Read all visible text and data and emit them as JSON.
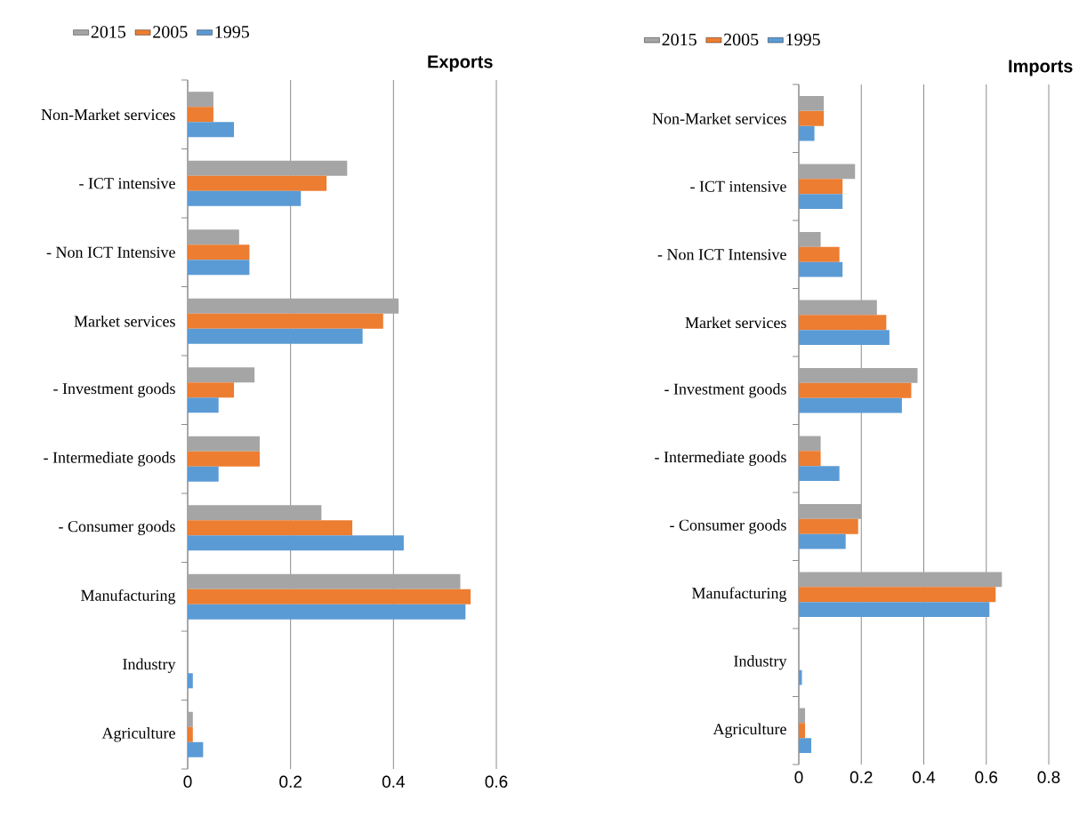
{
  "chart_data": [
    {
      "type": "bar",
      "orientation": "horizontal",
      "title": "Exports",
      "categories": [
        "Non-Market services",
        "- ICT intensive",
        "- Non ICT Intensive",
        "Market services",
        "- Investment goods",
        "- Intermediate goods",
        "- Consumer goods",
        "Manufacturing",
        "Industry",
        "Agriculture"
      ],
      "series": [
        {
          "name": "2015",
          "color": "#a5a5a5",
          "values": [
            0.05,
            0.31,
            0.1,
            0.41,
            0.13,
            0.14,
            0.26,
            0.53,
            0,
            0.01
          ]
        },
        {
          "name": "2005",
          "color": "#ed7d31",
          "values": [
            0.05,
            0.27,
            0.12,
            0.38,
            0.09,
            0.14,
            0.32,
            0.55,
            0,
            0.01
          ]
        },
        {
          "name": "1995",
          "color": "#5b9bd5",
          "values": [
            0.09,
            0.22,
            0.12,
            0.34,
            0.06,
            0.06,
            0.42,
            0.54,
            0.01,
            0.03
          ]
        }
      ],
      "xlim": [
        0,
        0.6
      ],
      "xticks": [
        0,
        0.2,
        0.4,
        0.6
      ],
      "grid": "x",
      "legend": "top left"
    },
    {
      "type": "bar",
      "orientation": "horizontal",
      "title": "Imports",
      "categories": [
        "Non-Market services",
        "- ICT intensive",
        "- Non ICT Intensive",
        "Market services",
        "- Investment goods",
        "- Intermediate goods",
        "- Consumer goods",
        "Manufacturing",
        "Industry",
        "Agriculture"
      ],
      "series": [
        {
          "name": "2015",
          "color": "#a5a5a5",
          "values": [
            0.08,
            0.18,
            0.07,
            0.25,
            0.38,
            0.07,
            0.2,
            0.65,
            0,
            0.02
          ]
        },
        {
          "name": "2005",
          "color": "#ed7d31",
          "values": [
            0.08,
            0.14,
            0.13,
            0.28,
            0.36,
            0.07,
            0.19,
            0.63,
            0,
            0.02
          ]
        },
        {
          "name": "1995",
          "color": "#5b9bd5",
          "values": [
            0.05,
            0.14,
            0.14,
            0.29,
            0.33,
            0.13,
            0.15,
            0.61,
            0.01,
            0.04
          ]
        }
      ],
      "xlim": [
        0,
        0.8
      ],
      "xticks": [
        0,
        0.2,
        0.4,
        0.6,
        0.8
      ],
      "grid": "x",
      "legend": "top left"
    }
  ]
}
